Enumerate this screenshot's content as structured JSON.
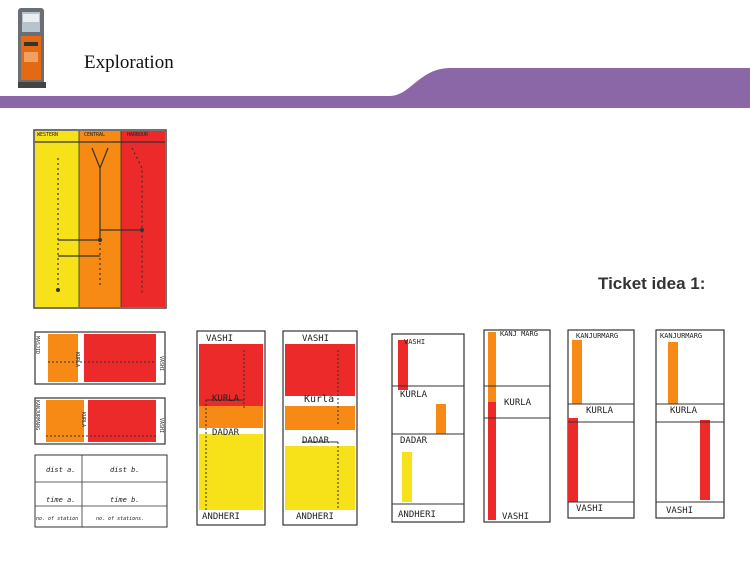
{
  "slide": {
    "title": "Exploration",
    "caption": "Ticket idea 1:",
    "accent_color": "#8b67a8"
  },
  "map_sketch": {
    "columns": [
      {
        "label": "WESTERN",
        "color": "#f7e21a"
      },
      {
        "label": "CENTRAL",
        "color": "#f78a14"
      },
      {
        "label": "HARBOUR",
        "color": "#ec2a2a"
      }
    ]
  },
  "horizontal_tickets": {
    "ticket1": {
      "left": "MASJID",
      "middle": "KURLA",
      "right": "VASHI"
    },
    "ticket2": {
      "left": "KANJURMARG",
      "middle": "KURLA",
      "right": "VASHI"
    },
    "rows": [
      {
        "a": "dist a.",
        "b": "dist b."
      },
      {
        "a": "time a.",
        "b": "time b."
      },
      {
        "a": "no. of station",
        "b": "no. of stations."
      }
    ]
  },
  "vertical_tickets": [
    {
      "labels": [
        "VASHI",
        "KURLA",
        "DADAR",
        "ANDHERI"
      ]
    },
    {
      "labels": [
        "VASHI",
        "Kurla",
        "DADAR",
        "ANDHERI"
      ]
    }
  ],
  "slim_tickets": [
    {
      "labels": [
        "VASHI",
        "KURLA",
        "DADAR",
        "ANDHERI"
      ]
    },
    {
      "labels": [
        "KANJ MARG",
        "KURLA",
        "VASHI"
      ]
    },
    {
      "labels": [
        "KANJURMARG",
        "KURLA",
        "VASHI"
      ]
    },
    {
      "labels": [
        "KANJURMARG",
        "KURLA",
        "VASHI"
      ]
    }
  ]
}
